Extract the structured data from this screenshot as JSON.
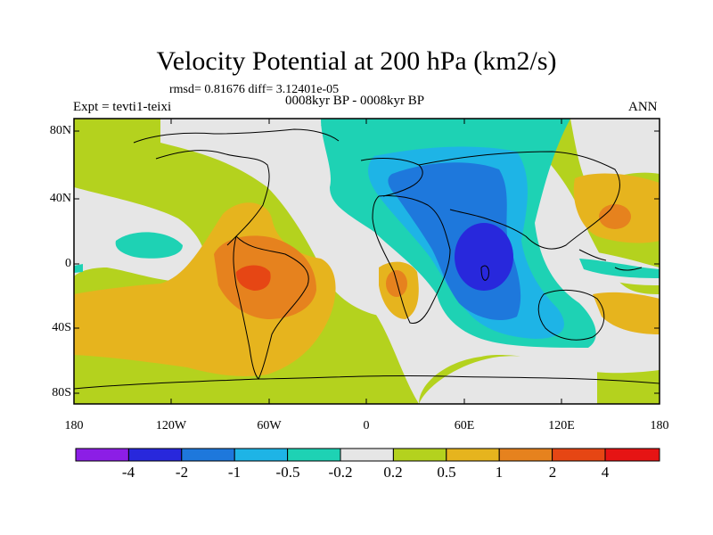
{
  "title": "Velocity Potential at 200 hPa (km2/s)",
  "stats_line": "rmsd= 0.81676 diff= 3.12401e-05",
  "subtitle": "0008kyr BP - 0008kyr BP",
  "left_label": "Expt = tevti1-teixi",
  "right_label": "ANN",
  "y_axis_labels": [
    "80N",
    "40N",
    "0",
    "40S",
    "80S"
  ],
  "x_axis_labels": [
    "180",
    "120W",
    "60W",
    "0",
    "60E",
    "120E",
    "180"
  ],
  "colorbar": {
    "colors": [
      "#8c1ee6",
      "#2828dc",
      "#1e78dc",
      "#1eb4e6",
      "#1ed2b4",
      "#e6e6e6",
      "#b4d21e",
      "#e6b41e",
      "#e6821e",
      "#e64614",
      "#e61414"
    ],
    "labels": [
      "-4",
      "-2",
      "-1",
      "-0.5",
      "-0.2",
      "0.2",
      "0.5",
      "1",
      "2",
      "4"
    ]
  },
  "colors": {
    "background_field": "#b4d21e",
    "coastline": "#000000"
  }
}
